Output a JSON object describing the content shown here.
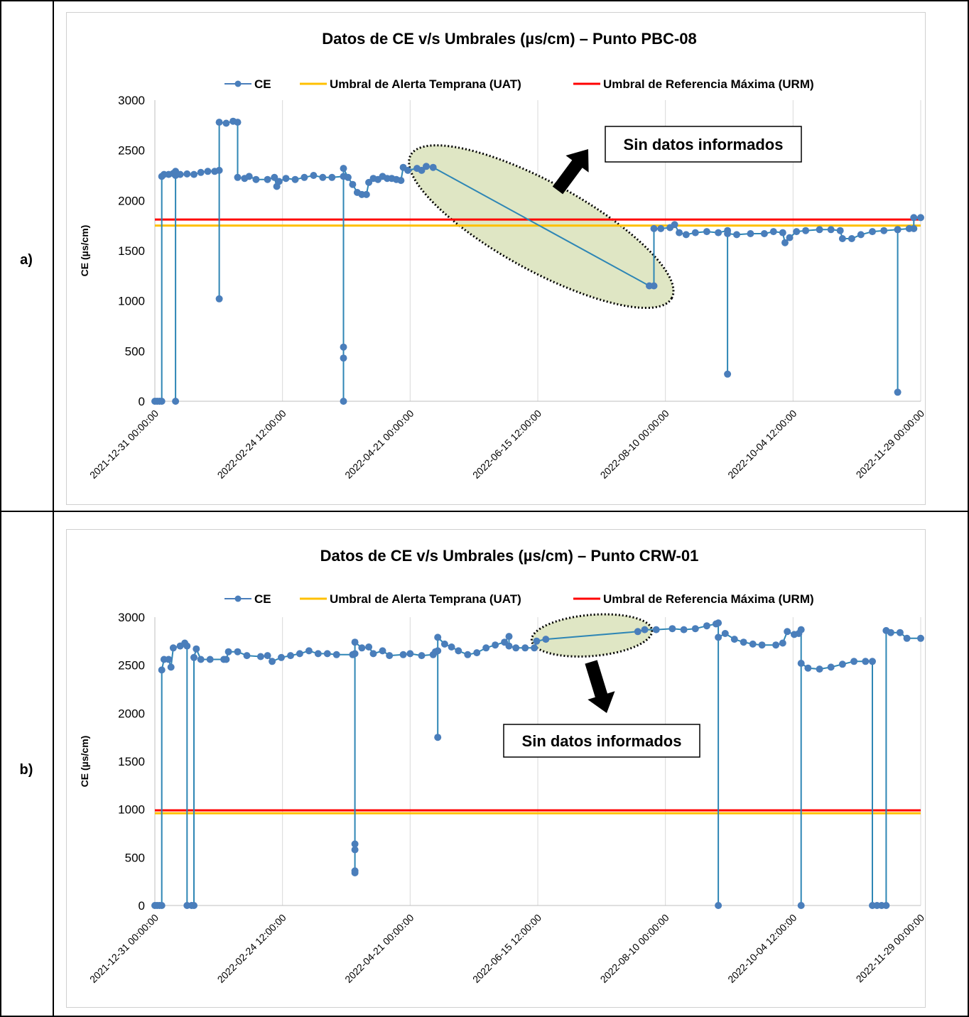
{
  "panels": [
    {
      "label": "a)"
    },
    {
      "label": "b)"
    }
  ],
  "chart_data": [
    {
      "type": "line",
      "title": "Datos de CE v/s Umbrales (µs/cm) – Punto PBC-08",
      "ylabel": "CE (µs/cm)",
      "xlabel": "",
      "ylim": [
        0,
        3000
      ],
      "yticks": [
        0,
        500,
        1000,
        1500,
        2000,
        2500,
        3000
      ],
      "x_ticks": [
        "2021-12-31 00:00:00",
        "2022-02-24 12:00:00",
        "2022-04-21 00:00:00",
        "2022-06-15 12:00:00",
        "2022-08-10 00:00:00",
        "2022-10-04 12:00:00",
        "2022-11-29 00:00:00"
      ],
      "xlim": [
        "2021-12-31 00:00:00",
        "2022-11-29 00:00:00"
      ],
      "grid": "vertical",
      "legend_position": "top",
      "legend": [
        "CE",
        "Umbral de Alerta Temprana (UAT)",
        "Umbral de Referencia Máxima (URM)"
      ],
      "colors": {
        "ce": "#4a7ebb",
        "uat": "#ffc000",
        "urm": "#ff0000"
      },
      "thresholds": {
        "uat": 1750,
        "urm": 1810
      },
      "annotation": {
        "text": "Sin datos informados",
        "gap_start": "2022-05-01",
        "gap_end": "2022-08-03"
      },
      "series": [
        {
          "name": "CE",
          "points": [
            [
              "2021-12-31",
              0
            ],
            [
              "2022-01-01",
              0
            ],
            [
              "2022-01-02",
              0
            ],
            [
              "2022-01-03",
              0
            ],
            [
              "2022-01-03",
              2240
            ],
            [
              "2022-01-04",
              2260
            ],
            [
              "2022-01-06",
              2260
            ],
            [
              "2022-01-08",
              2270
            ],
            [
              "2022-01-09",
              2250
            ],
            [
              "2022-01-09",
              0
            ],
            [
              "2022-01-09",
              2290
            ],
            [
              "2022-01-11",
              2260
            ],
            [
              "2022-01-14",
              2265
            ],
            [
              "2022-01-17",
              2260
            ],
            [
              "2022-01-20",
              2280
            ],
            [
              "2022-01-23",
              2290
            ],
            [
              "2022-01-26",
              2290
            ],
            [
              "2022-01-28",
              2300
            ],
            [
              "2022-01-28",
              1020
            ],
            [
              "2022-01-28",
              2780
            ],
            [
              "2022-01-31",
              2770
            ],
            [
              "2022-02-03",
              2790
            ],
            [
              "2022-02-05",
              2780
            ],
            [
              "2022-02-05",
              2230
            ],
            [
              "2022-02-08",
              2220
            ],
            [
              "2022-02-10",
              2240
            ],
            [
              "2022-02-13",
              2210
            ],
            [
              "2022-02-18",
              2210
            ],
            [
              "2022-02-21",
              2230
            ],
            [
              "2022-02-22",
              2140
            ],
            [
              "2022-02-23",
              2190
            ],
            [
              "2022-02-26",
              2220
            ],
            [
              "2022-03-02",
              2210
            ],
            [
              "2022-03-06",
              2230
            ],
            [
              "2022-03-10",
              2250
            ],
            [
              "2022-03-14",
              2230
            ],
            [
              "2022-03-18",
              2230
            ],
            [
              "2022-03-23",
              2240
            ],
            [
              "2022-03-23",
              540
            ],
            [
              "2022-03-23",
              430
            ],
            [
              "2022-03-23",
              0
            ],
            [
              "2022-03-23",
              2320
            ],
            [
              "2022-03-25",
              2230
            ],
            [
              "2022-03-27",
              2160
            ],
            [
              "2022-03-29",
              2080
            ],
            [
              "2022-03-31",
              2060
            ],
            [
              "2022-04-02",
              2060
            ],
            [
              "2022-04-03",
              2180
            ],
            [
              "2022-04-05",
              2220
            ],
            [
              "2022-04-07",
              2210
            ],
            [
              "2022-04-09",
              2240
            ],
            [
              "2022-04-11",
              2220
            ],
            [
              "2022-04-13",
              2220
            ],
            [
              "2022-04-15",
              2210
            ],
            [
              "2022-04-17",
              2200
            ],
            [
              "2022-04-18",
              2330
            ],
            [
              "2022-04-20",
              2300
            ],
            [
              "2022-04-24",
              2320
            ],
            [
              "2022-04-26",
              2300
            ],
            [
              "2022-04-28",
              2340
            ],
            [
              "2022-05-01",
              2330
            ],
            [
              "2022-08-03",
              1150
            ],
            [
              "2022-08-05",
              1150
            ],
            [
              "2022-08-05",
              1720
            ],
            [
              "2022-08-08",
              1720
            ],
            [
              "2022-08-12",
              1730
            ],
            [
              "2022-08-14",
              1760
            ],
            [
              "2022-08-16",
              1680
            ],
            [
              "2022-08-19",
              1660
            ],
            [
              "2022-08-23",
              1680
            ],
            [
              "2022-08-28",
              1690
            ],
            [
              "2022-09-02",
              1680
            ],
            [
              "2022-09-06",
              1700
            ],
            [
              "2022-09-06",
              270
            ],
            [
              "2022-09-06",
              1670
            ],
            [
              "2022-09-10",
              1660
            ],
            [
              "2022-09-16",
              1670
            ],
            [
              "2022-09-22",
              1670
            ],
            [
              "2022-09-26",
              1690
            ],
            [
              "2022-09-30",
              1680
            ],
            [
              "2022-10-01",
              1580
            ],
            [
              "2022-10-03",
              1630
            ],
            [
              "2022-10-06",
              1690
            ],
            [
              "2022-10-10",
              1700
            ],
            [
              "2022-10-16",
              1710
            ],
            [
              "2022-10-21",
              1710
            ],
            [
              "2022-10-25",
              1700
            ],
            [
              "2022-10-26",
              1620
            ],
            [
              "2022-10-30",
              1620
            ],
            [
              "2022-11-03",
              1660
            ],
            [
              "2022-11-08",
              1690
            ],
            [
              "2022-11-13",
              1700
            ],
            [
              "2022-11-19",
              1710
            ],
            [
              "2022-11-19",
              90
            ],
            [
              "2022-11-19",
              1710
            ],
            [
              "2022-11-24",
              1720
            ],
            [
              "2022-11-26",
              1720
            ],
            [
              "2022-11-26",
              1830
            ],
            [
              "2022-11-29",
              1830
            ]
          ]
        }
      ]
    },
    {
      "type": "line",
      "title": "Datos de CE v/s Umbrales (µs/cm) – Punto CRW-01",
      "ylabel": "CE (µs/cm)",
      "xlabel": "",
      "ylim": [
        0,
        3000
      ],
      "yticks": [
        0,
        500,
        1000,
        1500,
        2000,
        2500,
        3000
      ],
      "x_ticks": [
        "2021-12-31 00:00:00",
        "2022-02-24 12:00:00",
        "2022-04-21 00:00:00",
        "2022-06-15 12:00:00",
        "2022-08-10 00:00:00",
        "2022-10-04 12:00:00",
        "2022-11-29 00:00:00"
      ],
      "xlim": [
        "2021-12-31 00:00:00",
        "2022-11-29 00:00:00"
      ],
      "grid": "vertical",
      "legend_position": "top",
      "legend": [
        "CE",
        "Umbral de Alerta Temprana (UAT)",
        "Umbral de Referencia Máxima (URM)"
      ],
      "colors": {
        "ce": "#4a7ebb",
        "uat": "#ffc000",
        "urm": "#ff0000"
      },
      "thresholds": {
        "uat": 960,
        "urm": 990
      },
      "annotation": {
        "text": "Sin datos informados",
        "gap_start": "2022-06-19",
        "gap_end": "2022-07-29"
      },
      "series": [
        {
          "name": "CE",
          "points": [
            [
              "2021-12-31",
              0
            ],
            [
              "2022-01-01",
              0
            ],
            [
              "2022-01-02",
              0
            ],
            [
              "2022-01-03",
              0
            ],
            [
              "2022-01-03",
              2450
            ],
            [
              "2022-01-04",
              2560
            ],
            [
              "2022-01-06",
              2560
            ],
            [
              "2022-01-07",
              2480
            ],
            [
              "2022-01-08",
              2680
            ],
            [
              "2022-01-11",
              2700
            ],
            [
              "2022-01-13",
              2730
            ],
            [
              "2022-01-14",
              2700
            ],
            [
              "2022-01-14",
              0
            ],
            [
              "2022-01-16",
              0
            ],
            [
              "2022-01-17",
              0
            ],
            [
              "2022-01-17",
              2580
            ],
            [
              "2022-01-18",
              2670
            ],
            [
              "2022-01-20",
              2560
            ],
            [
              "2022-01-24",
              2560
            ],
            [
              "2022-01-30",
              2560
            ],
            [
              "2022-01-31",
              2560
            ],
            [
              "2022-02-01",
              2640
            ],
            [
              "2022-02-05",
              2640
            ],
            [
              "2022-02-09",
              2600
            ],
            [
              "2022-02-15",
              2590
            ],
            [
              "2022-02-18",
              2600
            ],
            [
              "2022-02-20",
              2540
            ],
            [
              "2022-02-24",
              2580
            ],
            [
              "2022-02-28",
              2600
            ],
            [
              "2022-03-04",
              2620
            ],
            [
              "2022-03-08",
              2650
            ],
            [
              "2022-03-12",
              2620
            ],
            [
              "2022-03-16",
              2620
            ],
            [
              "2022-03-20",
              2610
            ],
            [
              "2022-03-27",
              2610
            ],
            [
              "2022-03-28",
              2620
            ],
            [
              "2022-03-28",
              640
            ],
            [
              "2022-03-28",
              580
            ],
            [
              "2022-03-28",
              360
            ],
            [
              "2022-03-28",
              340
            ],
            [
              "2022-03-28",
              2740
            ],
            [
              "2022-03-31",
              2680
            ],
            [
              "2022-04-03",
              2690
            ],
            [
              "2022-04-05",
              2620
            ],
            [
              "2022-04-09",
              2650
            ],
            [
              "2022-04-12",
              2600
            ],
            [
              "2022-04-18",
              2610
            ],
            [
              "2022-04-21",
              2620
            ],
            [
              "2022-04-26",
              2600
            ],
            [
              "2022-05-01",
              2610
            ],
            [
              "2022-05-02",
              2640
            ],
            [
              "2022-05-03",
              2650
            ],
            [
              "2022-05-03",
              1750
            ],
            [
              "2022-05-03",
              2790
            ],
            [
              "2022-05-06",
              2720
            ],
            [
              "2022-05-09",
              2690
            ],
            [
              "2022-05-12",
              2650
            ],
            [
              "2022-05-16",
              2610
            ],
            [
              "2022-05-20",
              2630
            ],
            [
              "2022-05-24",
              2680
            ],
            [
              "2022-05-28",
              2710
            ],
            [
              "2022-06-01",
              2740
            ],
            [
              "2022-06-03",
              2800
            ],
            [
              "2022-06-03",
              2700
            ],
            [
              "2022-06-06",
              2680
            ],
            [
              "2022-06-10",
              2680
            ],
            [
              "2022-06-14",
              2680
            ],
            [
              "2022-06-15",
              2750
            ],
            [
              "2022-06-19",
              2770
            ],
            [
              "2022-07-29",
              2850
            ],
            [
              "2022-08-01",
              2870
            ],
            [
              "2022-08-06",
              2870
            ],
            [
              "2022-08-13",
              2880
            ],
            [
              "2022-08-18",
              2870
            ],
            [
              "2022-08-23",
              2880
            ],
            [
              "2022-08-28",
              2910
            ],
            [
              "2022-09-01",
              2930
            ],
            [
              "2022-09-02",
              2940
            ],
            [
              "2022-09-02",
              0
            ],
            [
              "2022-09-02",
              2790
            ],
            [
              "2022-09-05",
              2830
            ],
            [
              "2022-09-09",
              2770
            ],
            [
              "2022-09-13",
              2740
            ],
            [
              "2022-09-17",
              2720
            ],
            [
              "2022-09-21",
              2710
            ],
            [
              "2022-09-27",
              2710
            ],
            [
              "2022-09-30",
              2730
            ],
            [
              "2022-10-02",
              2850
            ],
            [
              "2022-10-05",
              2820
            ],
            [
              "2022-10-07",
              2830
            ],
            [
              "2022-10-08",
              2870
            ],
            [
              "2022-10-08",
              0
            ],
            [
              "2022-10-08",
              2520
            ],
            [
              "2022-10-11",
              2470
            ],
            [
              "2022-10-16",
              2460
            ],
            [
              "2022-10-21",
              2480
            ],
            [
              "2022-10-26",
              2510
            ],
            [
              "2022-10-31",
              2540
            ],
            [
              "2022-11-05",
              2540
            ],
            [
              "2022-11-08",
              2540
            ],
            [
              "2022-11-08",
              0
            ],
            [
              "2022-11-10",
              0
            ],
            [
              "2022-11-12",
              0
            ],
            [
              "2022-11-14",
              0
            ],
            [
              "2022-11-14",
              2860
            ],
            [
              "2022-11-16",
              2840
            ],
            [
              "2022-11-20",
              2840
            ],
            [
              "2022-11-23",
              2780
            ],
            [
              "2022-11-29",
              2780
            ]
          ]
        }
      ]
    }
  ]
}
